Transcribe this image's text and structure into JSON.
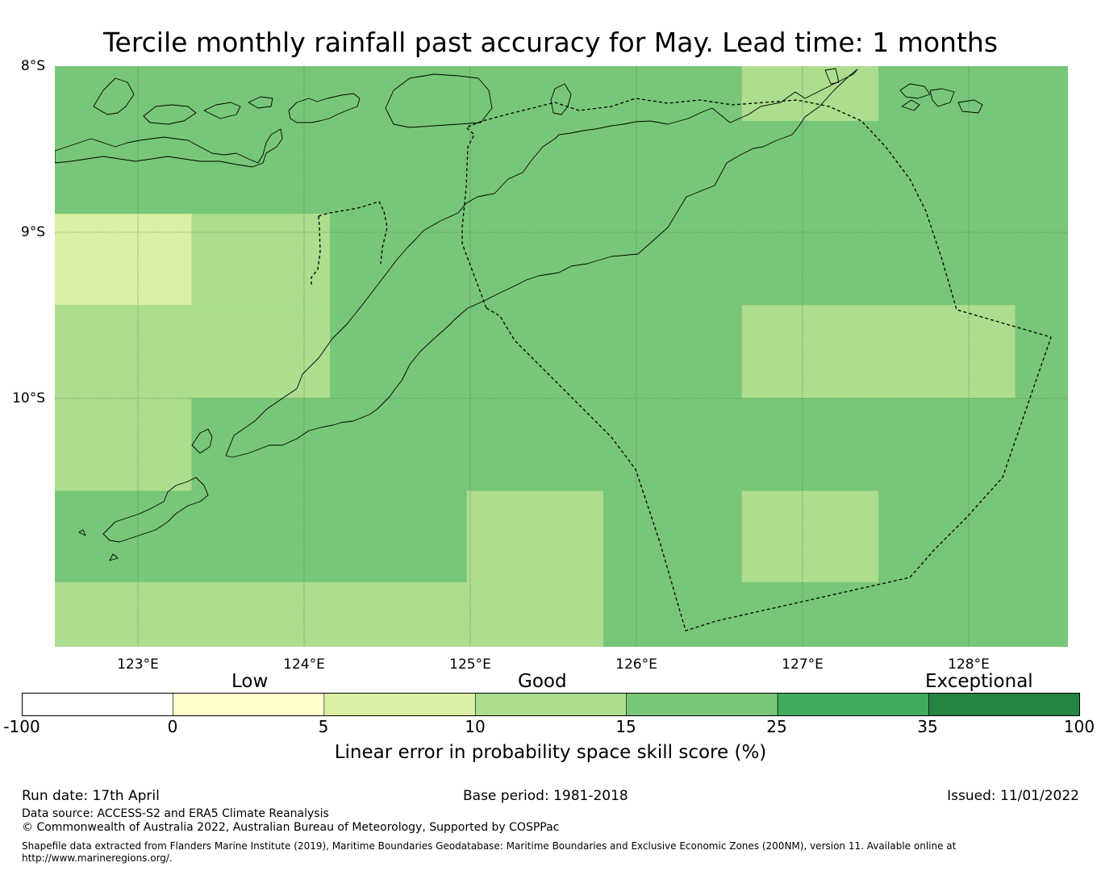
{
  "title": "Tercile monthly rainfall past accuracy for May. Lead time: 1 months",
  "map": {
    "lat_labels": [
      "8°S",
      "9°S",
      "10°S"
    ],
    "lon_labels": [
      "123°E",
      "124°E",
      "125°E",
      "126°E",
      "127°E",
      "128°E"
    ],
    "lon_range": [
      122.5,
      128.65
    ],
    "lat_range": [
      -8.0,
      -11.5
    ],
    "grid_cells": [
      {
        "lon": [
          122.5,
          128.65
        ],
        "lat": [
          -8.0,
          -11.5
        ],
        "category": "15-25"
      },
      {
        "lon": [
          122.5,
          123.33
        ],
        "lat": [
          -8.89,
          -9.44
        ],
        "category": "5-10"
      },
      {
        "lon": [
          123.33,
          124.17
        ],
        "lat": [
          -8.89,
          -9.44
        ],
        "category": "10-15"
      },
      {
        "lon": [
          122.5,
          124.17
        ],
        "lat": [
          -9.44,
          -10.0
        ],
        "category": "10-15"
      },
      {
        "lon": [
          122.5,
          123.33
        ],
        "lat": [
          -10.0,
          -10.56
        ],
        "category": "10-15"
      },
      {
        "lon": [
          122.5,
          125.0
        ],
        "lat": [
          -11.11,
          -11.5
        ],
        "category": "10-15"
      },
      {
        "lon": [
          125.0,
          125.83
        ],
        "lat": [
          -10.56,
          -11.5
        ],
        "category": "10-15"
      },
      {
        "lon": [
          126.67,
          127.5
        ],
        "lat": [
          -8.0,
          -8.33
        ],
        "category": "10-15"
      },
      {
        "lon": [
          126.67,
          128.33
        ],
        "lat": [
          -9.44,
          -10.0
        ],
        "category": "10-15"
      },
      {
        "lon": [
          126.67,
          127.5
        ],
        "lat": [
          -10.56,
          -11.11
        ],
        "category": "10-15"
      }
    ]
  },
  "colorbar": {
    "category_words": [
      "Low",
      "Good",
      "Exceptional"
    ],
    "ticks": [
      "-100",
      "0",
      "5",
      "10",
      "15",
      "25",
      "35",
      "100"
    ],
    "colors": [
      "#ffffff",
      "#ffffcc",
      "#d9f0a3",
      "#addd8e",
      "#78c679",
      "#41ab5d",
      "#238443"
    ],
    "axis_label": "Linear error in probability space skill score (%)"
  },
  "footer": {
    "run_date": "Run date: 17th April",
    "base_period": "Base period: 1981-2018",
    "issued": "Issued: 11/01/2022",
    "data_source": "Data source: ACCESS-S2 and ERA5 Climate Reanalysis",
    "copyright": "© Commonwealth of Australia 2022, Australian Bureau of Meteorology, Supported by COSPPac",
    "shapefile": "Shapefile data extracted from Flanders Marine Institute (2019), Maritime Boundaries Geodatabase: Maritime Boundaries and Exclusive Economic Zones (200NM), version 11. Available online at http://www.marineregions.org/."
  }
}
